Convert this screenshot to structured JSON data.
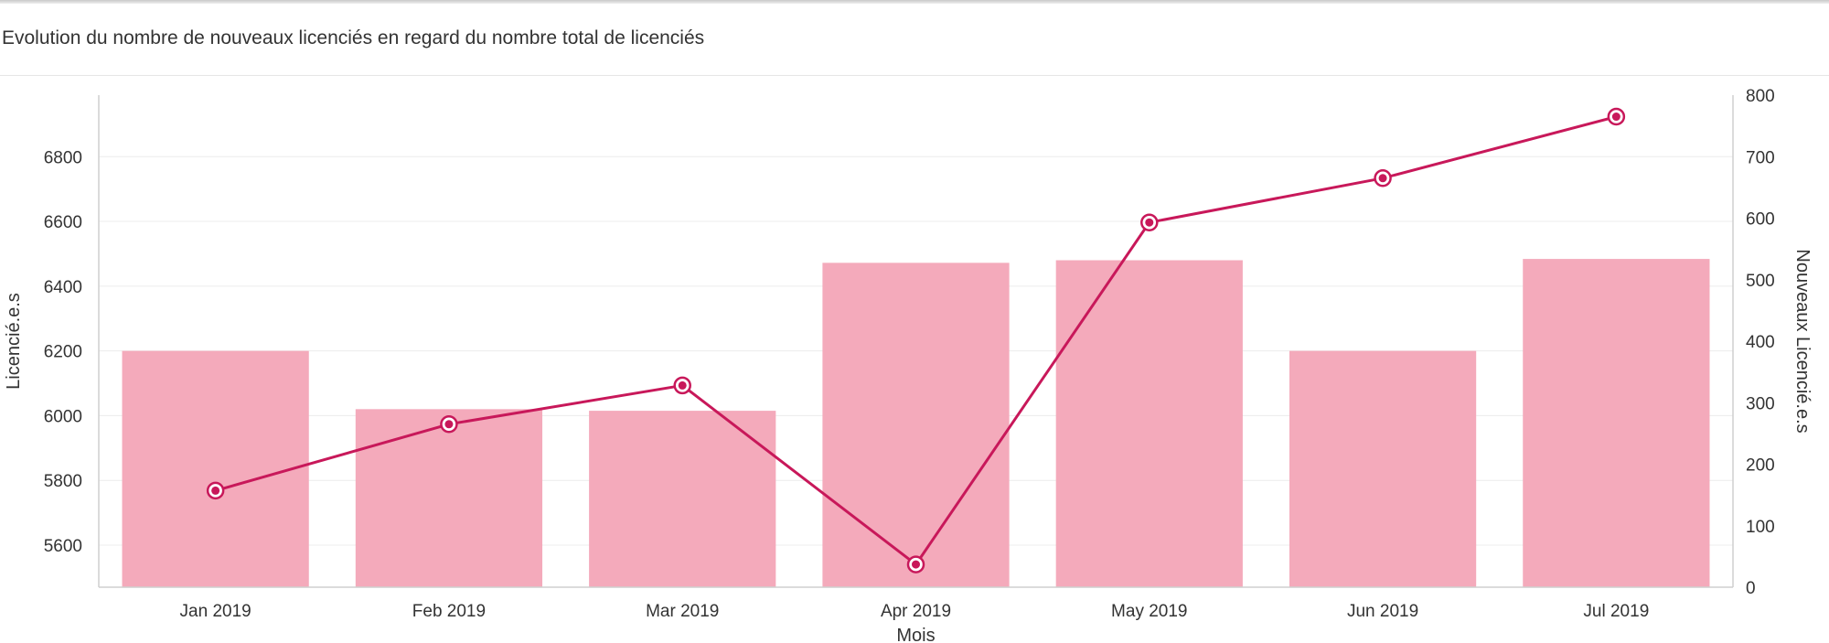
{
  "title": "Evolution du nombre de nouveaux licenciés en regard du nombre total de licenciés",
  "chart_data": {
    "type": "bar",
    "categories": [
      "Jan 2019",
      "Feb 2019",
      "Mar 2019",
      "Apr 2019",
      "May 2019",
      "Jun 2019",
      "Jul 2019"
    ],
    "xlabel": "Mois",
    "series": [
      {
        "type": "bar",
        "axis": "left",
        "values": [
          6200,
          6020,
          6015,
          6472,
          6480,
          6200,
          6484
        ],
        "color": "#f4aabb"
      },
      {
        "type": "line",
        "axis": "right",
        "values": [
          157,
          265,
          328,
          37,
          593,
          665,
          765
        ],
        "color": "#c8185a"
      }
    ],
    "y_left": {
      "label": "Licencié.e.s",
      "ylim": [
        5470,
        6990
      ],
      "ticks": [
        5600,
        5800,
        6000,
        6200,
        6400,
        6600,
        6800
      ]
    },
    "y_right": {
      "label": "Nouveaux Licencié.e.s",
      "ylim": [
        0,
        800
      ],
      "ticks": [
        0,
        100,
        200,
        300,
        400,
        500,
        600,
        700,
        800
      ]
    },
    "grid": true,
    "legend": "none"
  }
}
